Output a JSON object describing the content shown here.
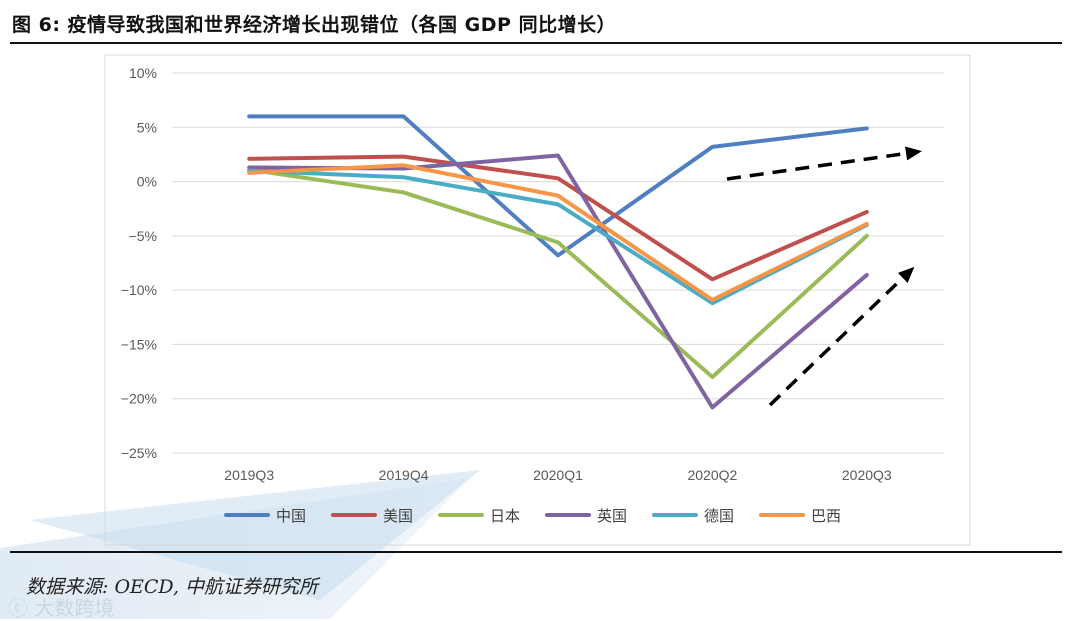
{
  "header": {
    "title": "图 6: 疫情导致我国和世界经济增长出现错位（各国 GDP 同比增长）"
  },
  "footer": {
    "source": "数据来源: OECD, 中航证券研究所",
    "watermark": "ⓒ 大数跨境"
  },
  "chart_data": {
    "type": "line",
    "title": "",
    "xlabel": "",
    "ylabel": "",
    "ylim": [
      -25,
      10
    ],
    "y_ticks": [
      10,
      5,
      0,
      -5,
      -10,
      -15,
      -20,
      -25
    ],
    "y_tick_labels": [
      "10%",
      "5%",
      "0%",
      "−5%",
      "−10%",
      "−15%",
      "−20%",
      "−25%"
    ],
    "grid": true,
    "legend_position": "bottom",
    "categories": [
      "2019Q3",
      "2019Q4",
      "2020Q1",
      "2020Q2",
      "2020Q3"
    ],
    "series": [
      {
        "name": "中国",
        "color": "#4f7fc0",
        "values": [
          6.0,
          6.0,
          -6.8,
          3.2,
          4.9
        ]
      },
      {
        "name": "美国",
        "color": "#c0504d",
        "values": [
          2.1,
          2.3,
          0.3,
          -9.0,
          -2.8
        ]
      },
      {
        "name": "日本",
        "color": "#9bbb59",
        "values": [
          1.1,
          -1.0,
          -5.6,
          -18.0,
          -5.0
        ]
      },
      {
        "name": "英国",
        "color": "#8064a2",
        "values": [
          1.3,
          1.2,
          2.4,
          -20.8,
          -8.6
        ]
      },
      {
        "name": "德国",
        "color": "#4bacc6",
        "values": [
          1.0,
          0.4,
          -2.1,
          -11.2,
          -4.0
        ]
      },
      {
        "name": "巴西",
        "color": "#f79646",
        "values": [
          0.8,
          1.5,
          -1.3,
          -10.9,
          -3.9
        ]
      }
    ],
    "annotations": [
      {
        "type": "dashed-arrow",
        "direction": "rising"
      },
      {
        "type": "dashed-arrow",
        "direction": "rising"
      }
    ]
  }
}
